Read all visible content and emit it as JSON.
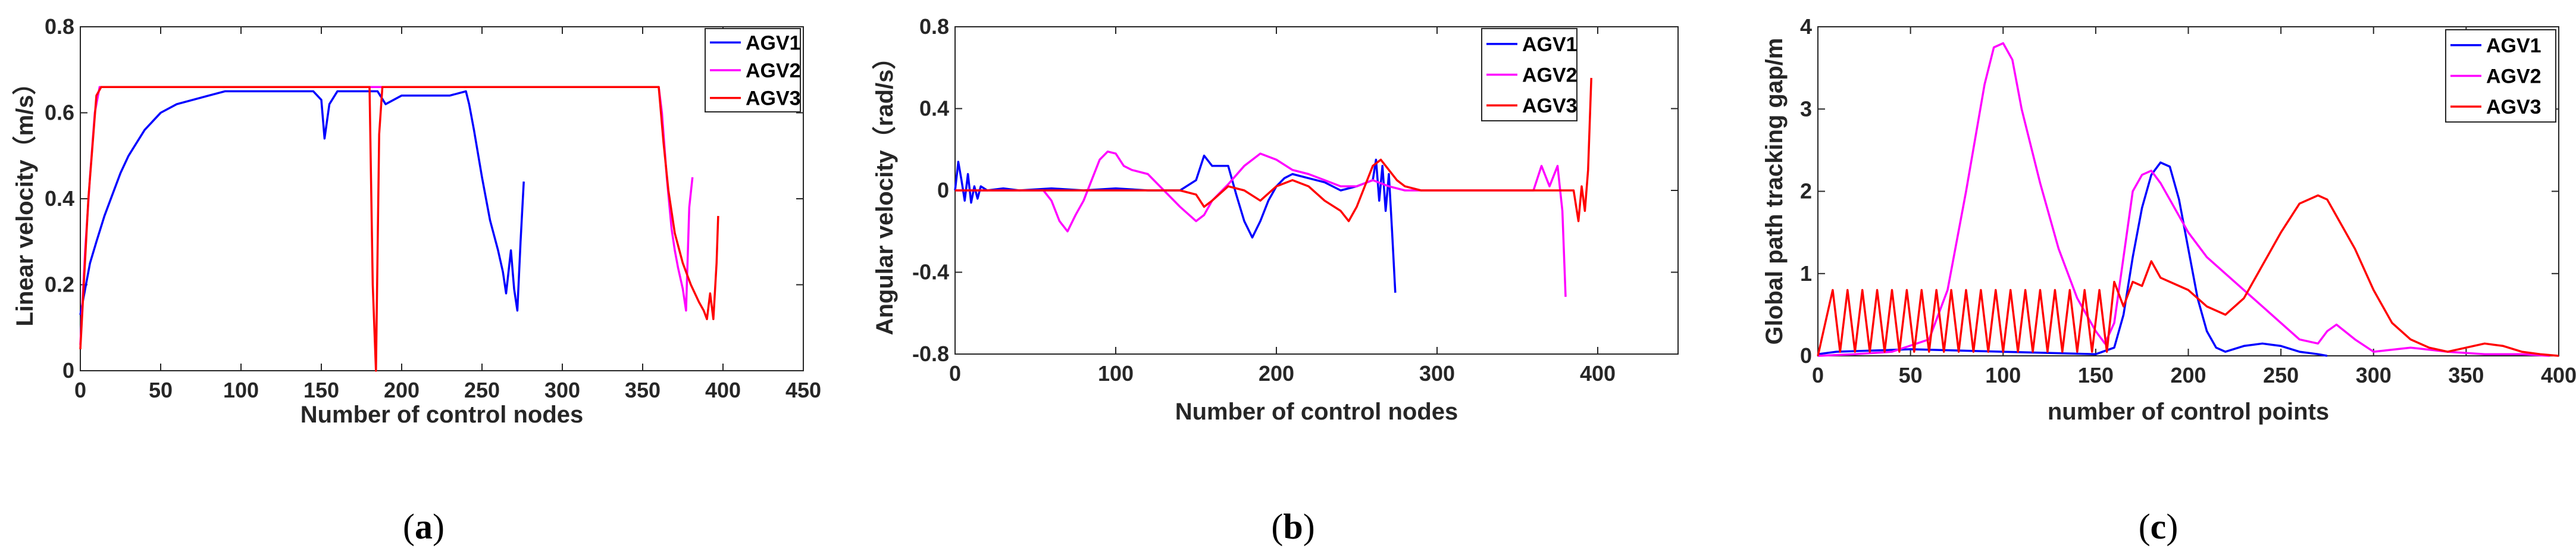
{
  "colors": {
    "AGV1": "#0000ff",
    "AGV2": "#ff00ff",
    "AGV3": "#ff0000"
  },
  "captions": [
    {
      "open": "(",
      "letter": "a",
      "close": ")"
    },
    {
      "open": "(",
      "letter": "b",
      "close": ")"
    },
    {
      "open": "(",
      "letter": "c",
      "close": ")"
    }
  ],
  "chart_data": [
    {
      "id": "a",
      "type": "line",
      "title": "",
      "xlabel": "Number of control nodes",
      "ylabel": "Linear velocity（m/s）",
      "xlim": [
        0,
        450
      ],
      "ylim": [
        0,
        0.8
      ],
      "xticks": [
        0,
        50,
        100,
        150,
        200,
        250,
        300,
        350,
        400,
        450
      ],
      "xtick_labels": [
        "0",
        "50",
        "100",
        "150",
        "200",
        "250",
        "300",
        "350",
        "400",
        "450"
      ],
      "yticks": [
        0,
        0.2,
        0.4,
        0.6,
        0.8
      ],
      "ytick_labels": [
        "0",
        "0.2",
        "0.4",
        "0.6",
        "0.8"
      ],
      "legend": "top-right",
      "series": [
        {
          "name": "AGV1",
          "x": [
            0,
            3,
            6,
            10,
            15,
            20,
            25,
            30,
            40,
            50,
            60,
            70,
            80,
            90,
            100,
            110,
            120,
            130,
            140,
            145,
            150,
            152,
            155,
            160,
            170,
            180,
            185,
            190,
            195,
            200,
            210,
            220,
            230,
            240,
            242,
            245,
            250,
            255,
            260,
            263,
            265,
            268,
            270,
            272,
            274,
            276
          ],
          "y": [
            0.13,
            0.19,
            0.25,
            0.3,
            0.36,
            0.41,
            0.46,
            0.5,
            0.56,
            0.6,
            0.62,
            0.63,
            0.64,
            0.65,
            0.65,
            0.65,
            0.65,
            0.65,
            0.65,
            0.65,
            0.63,
            0.54,
            0.62,
            0.65,
            0.65,
            0.65,
            0.65,
            0.62,
            0.63,
            0.64,
            0.64,
            0.64,
            0.64,
            0.65,
            0.62,
            0.56,
            0.45,
            0.35,
            0.28,
            0.23,
            0.18,
            0.28,
            0.19,
            0.14,
            0.3,
            0.44
          ]
        },
        {
          "name": "AGV2",
          "x": [
            0,
            3,
            6,
            9,
            12,
            20,
            60,
            100,
            150,
            200,
            250,
            300,
            350,
            360,
            362,
            365,
            368,
            370,
            372,
            375,
            377,
            379,
            381
          ],
          "y": [
            0.06,
            0.28,
            0.45,
            0.6,
            0.66,
            0.66,
            0.66,
            0.66,
            0.66,
            0.66,
            0.66,
            0.66,
            0.66,
            0.66,
            0.6,
            0.45,
            0.33,
            0.28,
            0.24,
            0.19,
            0.14,
            0.38,
            0.45
          ]
        },
        {
          "name": "AGV3",
          "x": [
            0,
            5,
            10,
            13,
            100,
            180,
            182,
            184,
            186,
            188,
            190,
            250,
            300,
            355,
            360,
            363,
            366,
            370,
            375,
            380,
            385,
            388,
            390,
            392,
            394,
            396,
            397
          ],
          "y": [
            0.05,
            0.4,
            0.64,
            0.66,
            0.66,
            0.66,
            0.2,
            0.0,
            0.55,
            0.66,
            0.66,
            0.66,
            0.66,
            0.66,
            0.66,
            0.53,
            0.42,
            0.32,
            0.25,
            0.2,
            0.16,
            0.14,
            0.12,
            0.18,
            0.12,
            0.25,
            0.36
          ]
        }
      ]
    },
    {
      "id": "b",
      "type": "line",
      "title": "",
      "xlabel": "Number of control nodes",
      "ylabel": "Angular velocity（rad/s）",
      "xlim": [
        0,
        450
      ],
      "ylim": [
        -0.8,
        0.8
      ],
      "xticks": [
        0,
        100,
        200,
        300,
        400
      ],
      "xtick_labels": [
        "0",
        "100",
        "200",
        "300",
        "400"
      ],
      "yticks": [
        -0.8,
        -0.4,
        0,
        0.4,
        0.8
      ],
      "ytick_labels": [
        "-0.8",
        "-0.4",
        "0",
        "0.4",
        "0.8"
      ],
      "legend": "top-right",
      "series": [
        {
          "name": "AGV1",
          "x": [
            0,
            2,
            4,
            6,
            8,
            10,
            12,
            14,
            16,
            20,
            30,
            40,
            60,
            80,
            100,
            120,
            140,
            150,
            155,
            160,
            170,
            175,
            180,
            185,
            190,
            195,
            200,
            205,
            210,
            220,
            230,
            240,
            250,
            260,
            262,
            264,
            266,
            268,
            270,
            272,
            274
          ],
          "y": [
            0.0,
            0.14,
            0.05,
            -0.05,
            0.08,
            -0.06,
            0.02,
            -0.04,
            0.02,
            0.0,
            0.01,
            0.0,
            0.01,
            0.0,
            0.01,
            0.0,
            0.0,
            0.05,
            0.17,
            0.12,
            0.12,
            -0.02,
            -0.15,
            -0.23,
            -0.15,
            -0.05,
            0.02,
            0.06,
            0.08,
            0.06,
            0.04,
            0.0,
            0.02,
            0.05,
            0.15,
            -0.05,
            0.12,
            -0.1,
            0.08,
            -0.2,
            -0.5
          ]
        },
        {
          "name": "AGV2",
          "x": [
            0,
            20,
            40,
            55,
            60,
            65,
            70,
            75,
            80,
            85,
            90,
            95,
            100,
            105,
            110,
            120,
            130,
            140,
            150,
            155,
            160,
            170,
            180,
            190,
            200,
            210,
            220,
            230,
            240,
            250,
            260,
            270,
            280,
            300,
            320,
            340,
            360,
            365,
            370,
            375,
            378,
            380
          ],
          "y": [
            0.0,
            0.0,
            0.0,
            0.0,
            -0.05,
            -0.15,
            -0.2,
            -0.12,
            -0.05,
            0.05,
            0.15,
            0.19,
            0.18,
            0.12,
            0.1,
            0.08,
            0.0,
            -0.08,
            -0.15,
            -0.12,
            -0.05,
            0.03,
            0.12,
            0.18,
            0.15,
            0.1,
            0.08,
            0.05,
            0.02,
            0.02,
            0.05,
            0.02,
            0.0,
            0.0,
            0.0,
            0.0,
            0.0,
            0.12,
            0.02,
            0.12,
            -0.1,
            -0.52
          ]
        },
        {
          "name": "AGV3",
          "x": [
            0,
            50,
            100,
            120,
            140,
            150,
            155,
            160,
            170,
            180,
            190,
            200,
            210,
            220,
            230,
            240,
            245,
            250,
            255,
            260,
            265,
            270,
            275,
            280,
            290,
            300,
            320,
            340,
            360,
            370,
            380,
            385,
            388,
            390,
            392,
            394,
            396
          ],
          "y": [
            0.0,
            0.0,
            0.0,
            0.0,
            0.0,
            -0.02,
            -0.08,
            -0.05,
            0.02,
            0.0,
            -0.05,
            0.02,
            0.05,
            0.02,
            -0.05,
            -0.1,
            -0.15,
            -0.08,
            0.02,
            0.12,
            0.15,
            0.1,
            0.05,
            0.02,
            0.0,
            0.0,
            0.0,
            0.0,
            0.0,
            0.0,
            0.0,
            0.0,
            -0.15,
            0.02,
            -0.1,
            0.1,
            0.55
          ]
        }
      ]
    },
    {
      "id": "c",
      "type": "line",
      "title": "",
      "xlabel": "number of control points",
      "ylabel": "Global path tracking gap/m",
      "xlim": [
        0,
        400
      ],
      "ylim": [
        0,
        4
      ],
      "xticks": [
        0,
        50,
        100,
        150,
        200,
        250,
        300,
        350,
        400
      ],
      "xtick_labels": [
        "0",
        "50",
        "100",
        "150",
        "200",
        "250",
        "300",
        "350",
        "400"
      ],
      "yticks": [
        0,
        1,
        2,
        3,
        4
      ],
      "ytick_labels": [
        "0",
        "1",
        "2",
        "3",
        "4"
      ],
      "legend": "top-right",
      "series": [
        {
          "name": "AGV1",
          "x": [
            0,
            10,
            50,
            100,
            150,
            160,
            165,
            170,
            175,
            180,
            185,
            190,
            195,
            200,
            205,
            210,
            215,
            220,
            230,
            240,
            250,
            260,
            270,
            275
          ],
          "y": [
            0.02,
            0.05,
            0.08,
            0.05,
            0.02,
            0.1,
            0.5,
            1.2,
            1.8,
            2.2,
            2.35,
            2.3,
            1.9,
            1.3,
            0.7,
            0.3,
            0.1,
            0.05,
            0.12,
            0.15,
            0.12,
            0.05,
            0.02,
            0.0
          ]
        },
        {
          "name": "AGV2",
          "x": [
            0,
            20,
            40,
            60,
            70,
            80,
            90,
            95,
            100,
            105,
            110,
            120,
            130,
            140,
            150,
            155,
            160,
            165,
            170,
            175,
            180,
            185,
            190,
            200,
            210,
            220,
            230,
            240,
            250,
            260,
            270,
            275,
            280,
            290,
            300,
            320,
            340,
            360,
            380,
            395
          ],
          "y": [
            0.0,
            0.02,
            0.05,
            0.2,
            0.8,
            2.0,
            3.3,
            3.75,
            3.8,
            3.6,
            3.0,
            2.1,
            1.3,
            0.7,
            0.3,
            0.15,
            0.4,
            1.2,
            2.0,
            2.2,
            2.25,
            2.1,
            1.9,
            1.5,
            1.2,
            1.0,
            0.8,
            0.6,
            0.4,
            0.2,
            0.15,
            0.3,
            0.38,
            0.2,
            0.05,
            0.1,
            0.05,
            0.02,
            0.02,
            0.0
          ]
        },
        {
          "name": "AGV3",
          "x": [
            0,
            4,
            8,
            12,
            16,
            20,
            24,
            28,
            32,
            36,
            40,
            44,
            48,
            52,
            56,
            60,
            64,
            68,
            72,
            76,
            80,
            84,
            88,
            92,
            96,
            100,
            104,
            108,
            112,
            116,
            120,
            124,
            128,
            132,
            136,
            140,
            144,
            148,
            152,
            156,
            160,
            165,
            170,
            175,
            180,
            185,
            190,
            200,
            210,
            220,
            230,
            240,
            250,
            260,
            270,
            275,
            280,
            290,
            300,
            310,
            320,
            330,
            340,
            350,
            360,
            370,
            380,
            390,
            400
          ],
          "y": [
            0.0,
            0.4,
            0.8,
            0.05,
            0.8,
            0.05,
            0.8,
            0.05,
            0.8,
            0.05,
            0.8,
            0.05,
            0.8,
            0.05,
            0.8,
            0.05,
            0.8,
            0.05,
            0.8,
            0.05,
            0.8,
            0.05,
            0.8,
            0.05,
            0.8,
            0.05,
            0.8,
            0.05,
            0.8,
            0.05,
            0.8,
            0.05,
            0.8,
            0.05,
            0.8,
            0.05,
            0.8,
            0.05,
            0.8,
            0.05,
            0.9,
            0.6,
            0.9,
            0.85,
            1.15,
            0.95,
            0.9,
            0.8,
            0.6,
            0.5,
            0.7,
            1.1,
            1.5,
            1.85,
            1.95,
            1.9,
            1.7,
            1.3,
            0.8,
            0.4,
            0.2,
            0.1,
            0.05,
            0.1,
            0.15,
            0.12,
            0.05,
            0.02,
            0.0
          ]
        }
      ]
    }
  ]
}
